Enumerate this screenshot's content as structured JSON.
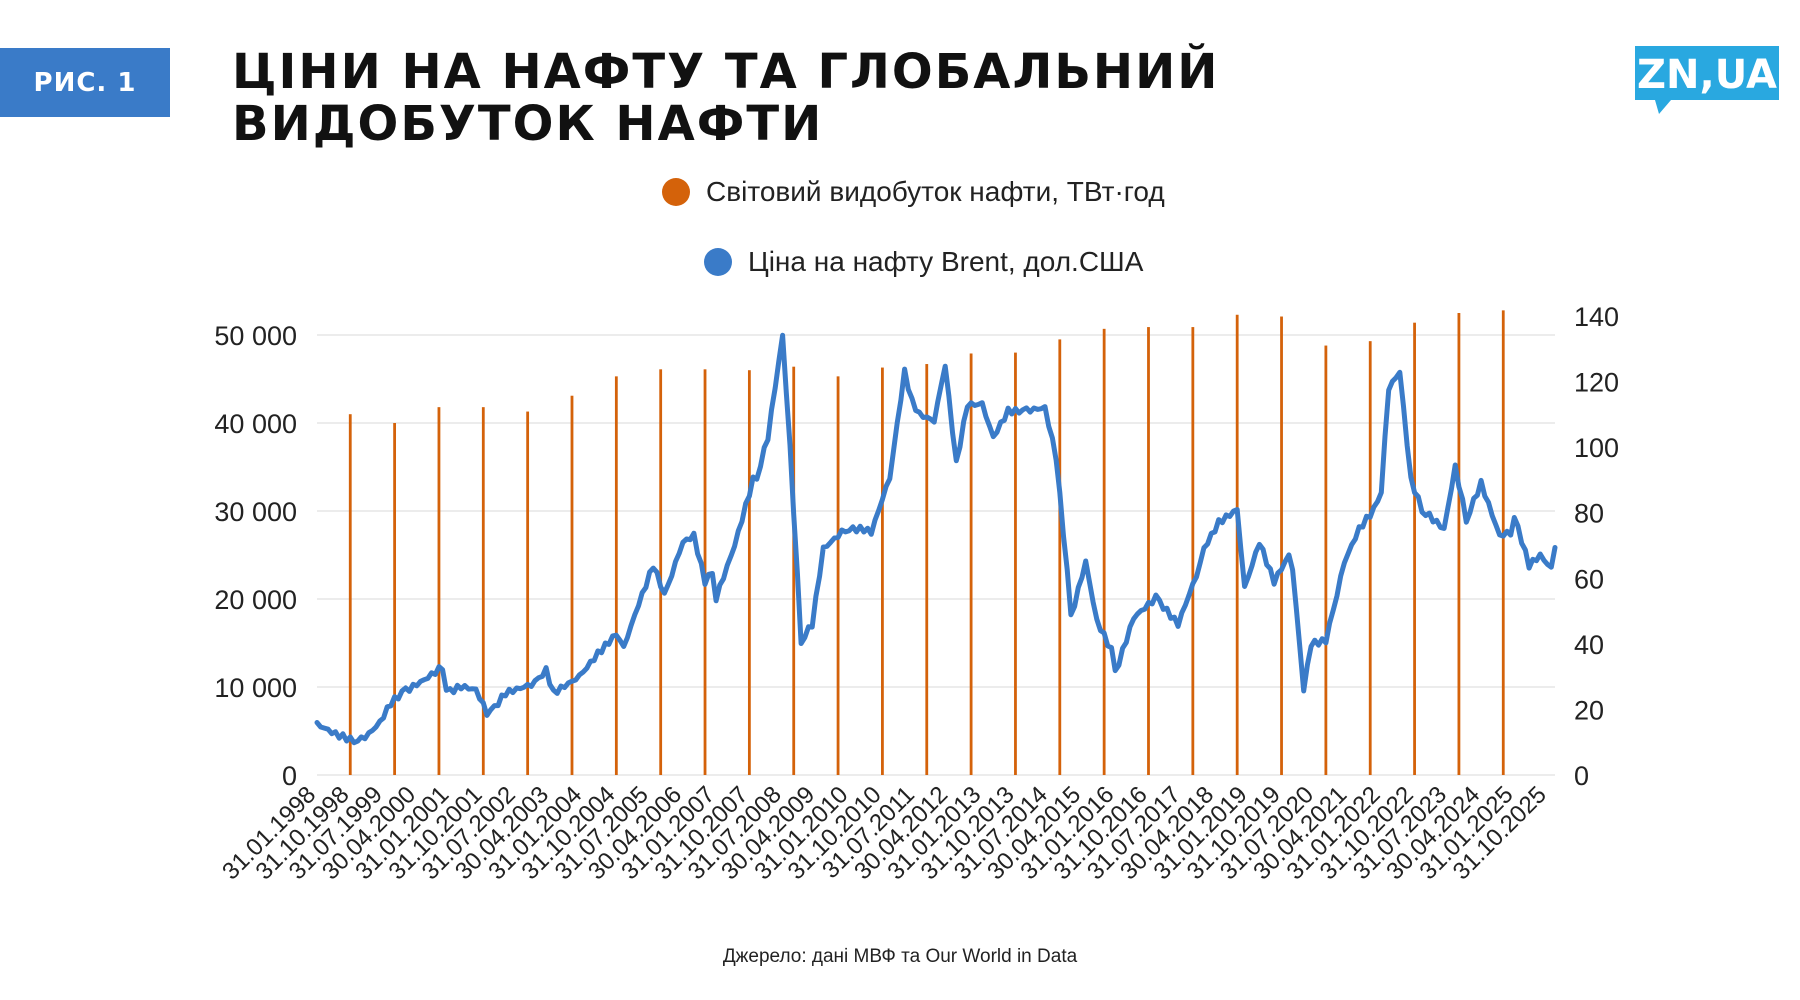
{
  "badge": "РИС. 1",
  "title": "ЦІНИ НА НАФТУ ТА ГЛОБАЛЬНИЙ ВИДОБУТОК НАФТИ",
  "logo": "ZN,UA",
  "source": "Джерело: дані МВФ та Our World in Data",
  "colors": {
    "badge": "#3a7bc8",
    "logo": "#29a8e0",
    "production": "#d4620a",
    "price": "#3a7bc8",
    "grid": "#d9d9d9"
  },
  "chart_data": {
    "type": "bar+line",
    "title": "",
    "legend": [
      {
        "name": "Світовий видобуток нафти, ТВт·год",
        "marker": "circle",
        "color": "#d4620a"
      },
      {
        "name": "Ціна на нафту Brent, дол.США",
        "marker": "circle",
        "color": "#3a7bc8"
      }
    ],
    "legend_position": "top-center",
    "grid": "horizontal",
    "y_left": {
      "min": 0,
      "max": 50000,
      "ticks": [
        "0",
        "10 000",
        "20 000",
        "30 000",
        "40 000",
        "50 000"
      ]
    },
    "y_right": {
      "min": 0,
      "max": 140,
      "ticks": [
        "0",
        "20",
        "40",
        "60",
        "80",
        "100",
        "120",
        "140"
      ]
    },
    "x_tick_labels": [
      "31.01.1998",
      "31.10.1998",
      "31.07.1999",
      "30.04.2000",
      "31.01.2001",
      "31.10.2001",
      "31.07.2002",
      "30.04.2003",
      "31.01.2004",
      "31.10.2004",
      "31.07.2005",
      "30.04.2006",
      "31.01.2007",
      "31.10.2007",
      "31.07.2008",
      "30.04.2009",
      "31.01.2010",
      "31.10.2010",
      "31.07.2011",
      "30.04.2012",
      "31.01.2013",
      "31.10.2013",
      "31.07.2014",
      "30.04.2015",
      "31.01.2016",
      "31.10.2016",
      "31.07.2017",
      "30.04.2018",
      "31.01.2019",
      "31.10.2019",
      "31.07.2020",
      "30.04.2021",
      "31.01.2022",
      "31.10.2022",
      "31.07.2023",
      "30.04.2024",
      "31.01.2025",
      "31.10.2025"
    ],
    "production_series": {
      "name": "Світовий видобуток нафти, ТВт·год",
      "years": [
        1998,
        1999,
        2000,
        2001,
        2002,
        2003,
        2004,
        2005,
        2006,
        2007,
        2008,
        2009,
        2010,
        2011,
        2012,
        2013,
        2014,
        2015,
        2016,
        2017,
        2018,
        2019,
        2020,
        2021,
        2022,
        2023,
        2024
      ],
      "values": [
        41000,
        40000,
        41800,
        41800,
        41300,
        43100,
        45300,
        46100,
        46100,
        46000,
        46400,
        45300,
        46300,
        46700,
        47900,
        48000,
        49500,
        50700,
        50900,
        50900,
        52300,
        52100,
        48800,
        49300,
        51400,
        52500,
        52800
      ]
    },
    "price_series": {
      "name": "Ціна на нафту Brent, дол.США",
      "anchors": [
        [
          "1998-01",
          15.5
        ],
        [
          "1998-06",
          12.5
        ],
        [
          "1998-12",
          10
        ],
        [
          "1999-03",
          12.5
        ],
        [
          "1999-06",
          16
        ],
        [
          "1999-09",
          22
        ],
        [
          "1999-12",
          25
        ],
        [
          "2000-06",
          29
        ],
        [
          "2000-11",
          33
        ],
        [
          "2000-12",
          25
        ],
        [
          "2001-04",
          27
        ],
        [
          "2001-08",
          26
        ],
        [
          "2001-11",
          19
        ],
        [
          "2001-12",
          19
        ],
        [
          "2002-04",
          25
        ],
        [
          "2002-12",
          28
        ],
        [
          "2003-03",
          32
        ],
        [
          "2003-05",
          25
        ],
        [
          "2003-12",
          30
        ],
        [
          "2004-05",
          37
        ],
        [
          "2004-10",
          43
        ],
        [
          "2004-12",
          39
        ],
        [
          "2005-04",
          52
        ],
        [
          "2005-08",
          64
        ],
        [
          "2005-11",
          55
        ],
        [
          "2006-04",
          71
        ],
        [
          "2006-07",
          73
        ],
        [
          "2006-10",
          59
        ],
        [
          "2006-12",
          62
        ],
        [
          "2007-01",
          54
        ],
        [
          "2007-06",
          70
        ],
        [
          "2007-11",
          90
        ],
        [
          "2007-12",
          91
        ],
        [
          "2008-03",
          103
        ],
        [
          "2008-07",
          134
        ],
        [
          "2008-09",
          100
        ],
        [
          "2008-12",
          41
        ],
        [
          "2009-03",
          46
        ],
        [
          "2009-06",
          69
        ],
        [
          "2009-12",
          75
        ],
        [
          "2010-05",
          75
        ],
        [
          "2010-07",
          74
        ],
        [
          "2010-12",
          91
        ],
        [
          "2011-04",
          123
        ],
        [
          "2011-06",
          114
        ],
        [
          "2011-08",
          110
        ],
        [
          "2011-12",
          108
        ],
        [
          "2012-03",
          125
        ],
        [
          "2012-06",
          95
        ],
        [
          "2012-09",
          113
        ],
        [
          "2013-01",
          113
        ],
        [
          "2013-04",
          103
        ],
        [
          "2013-08",
          111
        ],
        [
          "2013-12",
          111
        ],
        [
          "2014-06",
          112
        ],
        [
          "2014-09",
          97
        ],
        [
          "2014-12",
          62
        ],
        [
          "2015-01",
          48
        ],
        [
          "2015-05",
          65
        ],
        [
          "2015-08",
          47
        ],
        [
          "2015-12",
          38
        ],
        [
          "2016-01",
          31
        ],
        [
          "2016-06",
          48
        ],
        [
          "2016-12",
          54
        ],
        [
          "2017-06",
          46
        ],
        [
          "2017-12",
          64
        ],
        [
          "2018-01",
          69
        ],
        [
          "2018-05",
          77
        ],
        [
          "2018-10",
          81
        ],
        [
          "2018-12",
          57
        ],
        [
          "2019-04",
          71
        ],
        [
          "2019-08",
          59
        ],
        [
          "2019-12",
          67
        ],
        [
          "2020-01",
          63
        ],
        [
          "2020-04",
          26
        ],
        [
          "2020-06",
          40
        ],
        [
          "2020-10",
          41
        ],
        [
          "2021-03",
          65
        ],
        [
          "2021-07",
          75
        ],
        [
          "2021-11",
          81
        ],
        [
          "2022-01",
          87
        ],
        [
          "2022-03",
          118
        ],
        [
          "2022-06",
          123
        ],
        [
          "2022-09",
          90
        ],
        [
          "2022-12",
          81
        ],
        [
          "2023-06",
          75
        ],
        [
          "2023-09",
          94
        ],
        [
          "2023-12",
          78
        ],
        [
          "2024-04",
          89
        ],
        [
          "2024-09",
          73
        ],
        [
          "2024-12",
          74
        ],
        [
          "2025-01",
          79
        ],
        [
          "2025-05",
          64
        ],
        [
          "2025-08",
          67
        ],
        [
          "2025-11",
          63
        ],
        [
          "2025-12",
          70
        ]
      ]
    }
  }
}
